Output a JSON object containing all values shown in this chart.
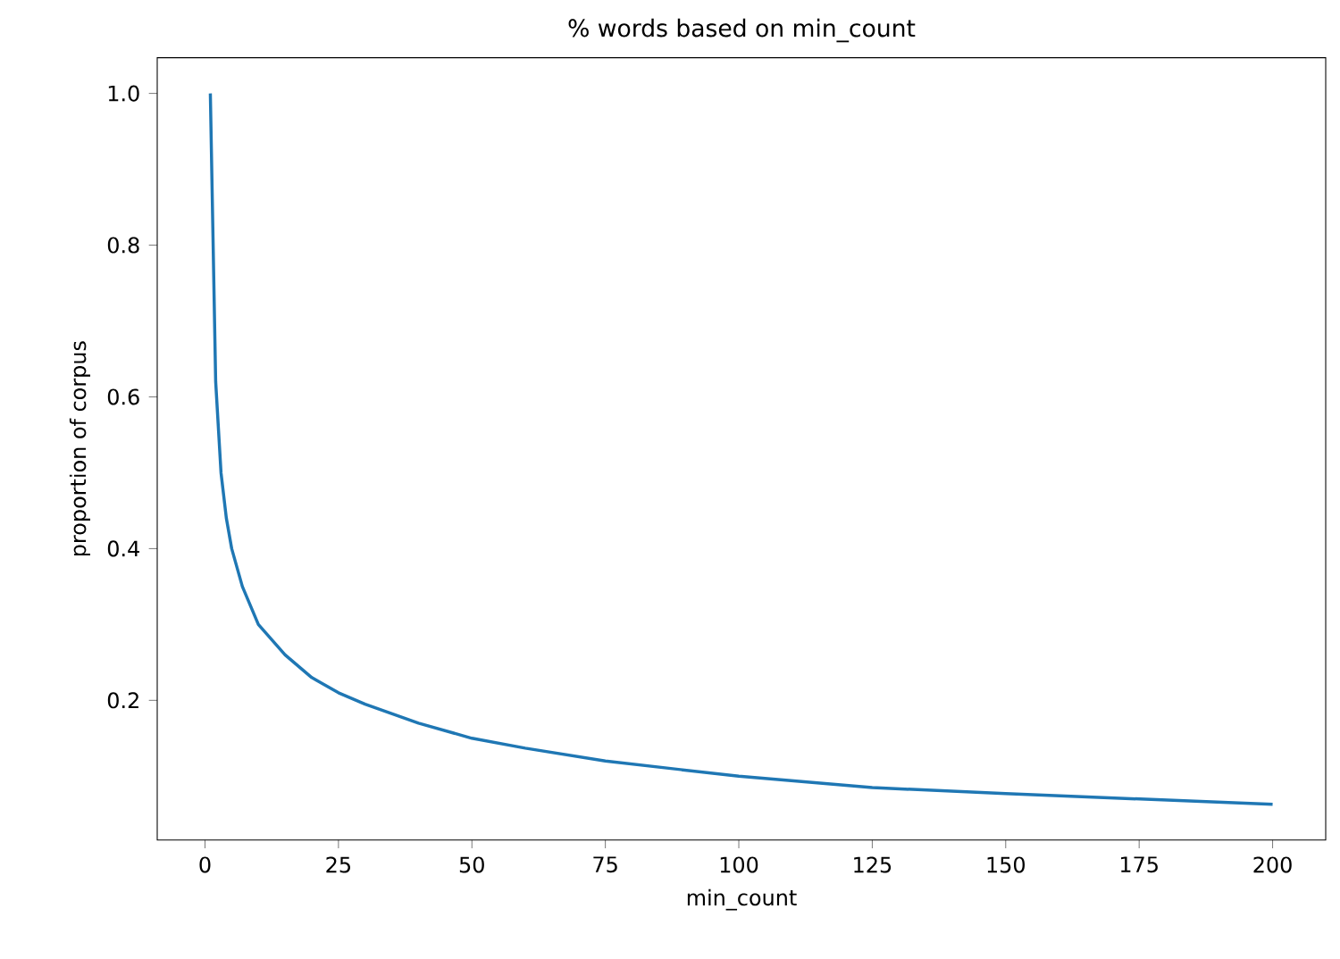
{
  "chart_data": {
    "type": "line",
    "title": "% words based on min_count",
    "xlabel": "min_count",
    "ylabel": "proportion of corpus",
    "x": [
      1,
      2,
      3,
      4,
      5,
      7,
      10,
      15,
      20,
      25,
      30,
      40,
      50,
      60,
      75,
      100,
      125,
      150,
      175,
      200
    ],
    "series": [
      {
        "color": "#1f77b4",
        "values": [
          1.0,
          0.62,
          0.5,
          0.44,
          0.4,
          0.35,
          0.3,
          0.26,
          0.23,
          0.21,
          0.195,
          0.17,
          0.15,
          0.137,
          0.12,
          0.1,
          0.085,
          0.077,
          0.07,
          0.063
        ]
      }
    ],
    "xlim": [
      -8.95,
      209.95
    ],
    "ylim": [
      0.016,
      1.047
    ],
    "xticks": [
      0,
      25,
      50,
      75,
      100,
      125,
      150,
      175,
      200
    ],
    "yticks": [
      {
        "value": 0.2,
        "label": "0.2"
      },
      {
        "value": 0.4,
        "label": "0.4"
      },
      {
        "value": 0.6,
        "label": "0.6"
      },
      {
        "value": 0.8,
        "label": "0.8"
      },
      {
        "value": 1.0,
        "label": "1.0"
      }
    ],
    "grid": false
  }
}
